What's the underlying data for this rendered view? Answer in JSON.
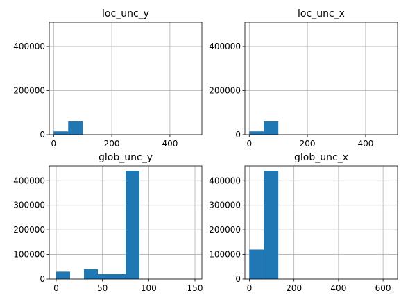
{
  "colors": {
    "bar": "#1f77b4",
    "grid": "#b0b0b0",
    "axes": "#000000"
  },
  "chart_data": [
    {
      "type": "bar",
      "title": "loc_unc_y",
      "grid": true,
      "bins": [
        {
          "x0": 0,
          "x1": 50,
          "value": 15000
        },
        {
          "x0": 50,
          "x1": 100,
          "value": 60000
        }
      ],
      "xlim": [
        -15,
        510
      ],
      "ylim": [
        0,
        510000
      ],
      "xticks": [
        0,
        200,
        400
      ],
      "yticks": [
        0,
        200000,
        400000
      ]
    },
    {
      "type": "bar",
      "title": "loc_unc_x",
      "grid": true,
      "bins": [
        {
          "x0": 0,
          "x1": 50,
          "value": 15000
        },
        {
          "x0": 50,
          "x1": 100,
          "value": 60000
        }
      ],
      "xlim": [
        -15,
        510
      ],
      "ylim": [
        0,
        510000
      ],
      "xticks": [
        0,
        200,
        400
      ],
      "yticks": [
        0,
        200000,
        400000
      ]
    },
    {
      "type": "bar",
      "title": "glob_unc_y",
      "grid": true,
      "bins": [
        {
          "x0": 0,
          "x1": 15,
          "value": 30000
        },
        {
          "x0": 15,
          "x1": 30,
          "value": 0
        },
        {
          "x0": 30,
          "x1": 45,
          "value": 40000
        },
        {
          "x0": 45,
          "x1": 60,
          "value": 20000
        },
        {
          "x0": 60,
          "x1": 75,
          "value": 20000
        },
        {
          "x0": 75,
          "x1": 90,
          "value": 440000
        }
      ],
      "xlim": [
        -7.5,
        157.5
      ],
      "ylim": [
        0,
        460000
      ],
      "xticks": [
        0,
        50,
        100,
        150
      ],
      "yticks": [
        0,
        100000,
        200000,
        300000,
        400000
      ]
    },
    {
      "type": "bar",
      "title": "glob_unc_x",
      "grid": true,
      "bins": [
        {
          "x0": 0,
          "x1": 65,
          "value": 120000
        },
        {
          "x0": 65,
          "x1": 130,
          "value": 440000
        }
      ],
      "xlim": [
        -20,
        665
      ],
      "ylim": [
        0,
        460000
      ],
      "xticks": [
        0,
        200,
        400,
        600
      ],
      "yticks": [
        0,
        100000,
        200000,
        300000,
        400000
      ]
    }
  ]
}
